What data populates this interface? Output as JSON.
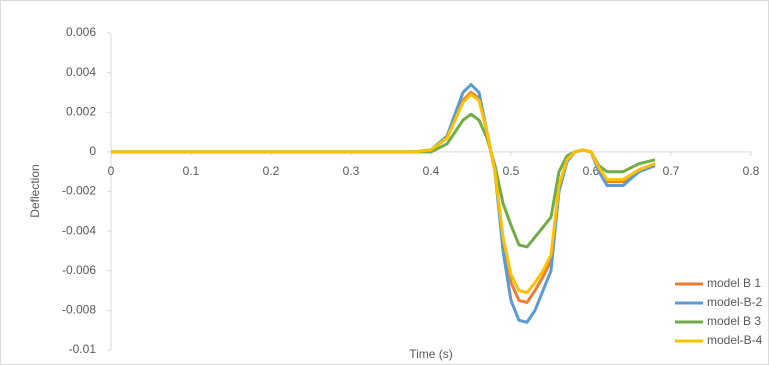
{
  "chart_data": {
    "type": "line",
    "x_label": "Time (s)",
    "y_label": "Deflection",
    "x": [
      0,
      0.38,
      0.4,
      0.42,
      0.44,
      0.45,
      0.46,
      0.47,
      0.48,
      0.49,
      0.5,
      0.51,
      0.52,
      0.53,
      0.54,
      0.55,
      0.56,
      0.57,
      0.58,
      0.59,
      0.6,
      0.61,
      0.62,
      0.64,
      0.66,
      0.68
    ],
    "series": [
      {
        "name": "model B 1",
        "color": "#ed7d31",
        "values": [
          0,
          0,
          0.0001,
          0.0007,
          0.0026,
          0.003,
          0.0027,
          0.001,
          -0.001,
          -0.0045,
          -0.0066,
          -0.0075,
          -0.0076,
          -0.007,
          -0.0063,
          -0.0055,
          -0.0018,
          -0.0004,
          0,
          0.0001,
          0,
          -0.0009,
          -0.0015,
          -0.0015,
          -0.001,
          -0.0006
        ]
      },
      {
        "name": "model-B-2",
        "color": "#5b9bd5",
        "values": [
          0,
          0,
          0.0001,
          0.0008,
          0.003,
          0.0034,
          0.003,
          0.001,
          -0.001,
          -0.005,
          -0.0075,
          -0.0085,
          -0.0086,
          -0.008,
          -0.007,
          -0.006,
          -0.002,
          -0.0005,
          0,
          0.0001,
          0,
          -0.001,
          -0.0017,
          -0.0017,
          -0.001,
          -0.0007
        ]
      },
      {
        "name": "model B 3",
        "color": "#70ad47",
        "values": [
          0,
          0,
          0,
          0.0004,
          0.0016,
          0.0019,
          0.0016,
          0.0007,
          -0.0007,
          -0.0026,
          -0.0037,
          -0.0047,
          -0.0048,
          -0.0043,
          -0.0038,
          -0.0033,
          -0.001,
          -0.0002,
          0,
          0.0001,
          0,
          -0.0007,
          -0.001,
          -0.001,
          -0.0006,
          -0.0004
        ]
      },
      {
        "name": "model-B-4",
        "color": "#ffc000",
        "values": [
          0,
          0,
          0.0001,
          0.0007,
          0.0025,
          0.0029,
          0.0026,
          0.001,
          -0.001,
          -0.0043,
          -0.0062,
          -0.007,
          -0.0071,
          -0.0066,
          -0.006,
          -0.0052,
          -0.0017,
          -0.0004,
          0,
          0.0001,
          0,
          -0.0008,
          -0.0014,
          -0.0014,
          -0.0009,
          -0.0006
        ]
      }
    ],
    "xlim": [
      0,
      0.8
    ],
    "xticks": [
      0,
      0.1,
      0.2,
      0.3,
      0.4,
      0.5,
      0.6,
      0.7,
      0.8
    ],
    "ylim": [
      -0.01,
      0.006
    ],
    "yticks": [
      0.006,
      0.004,
      0.002,
      0,
      -0.002,
      -0.004,
      -0.006,
      -0.008,
      -0.01
    ],
    "legend": "bottom-right"
  }
}
